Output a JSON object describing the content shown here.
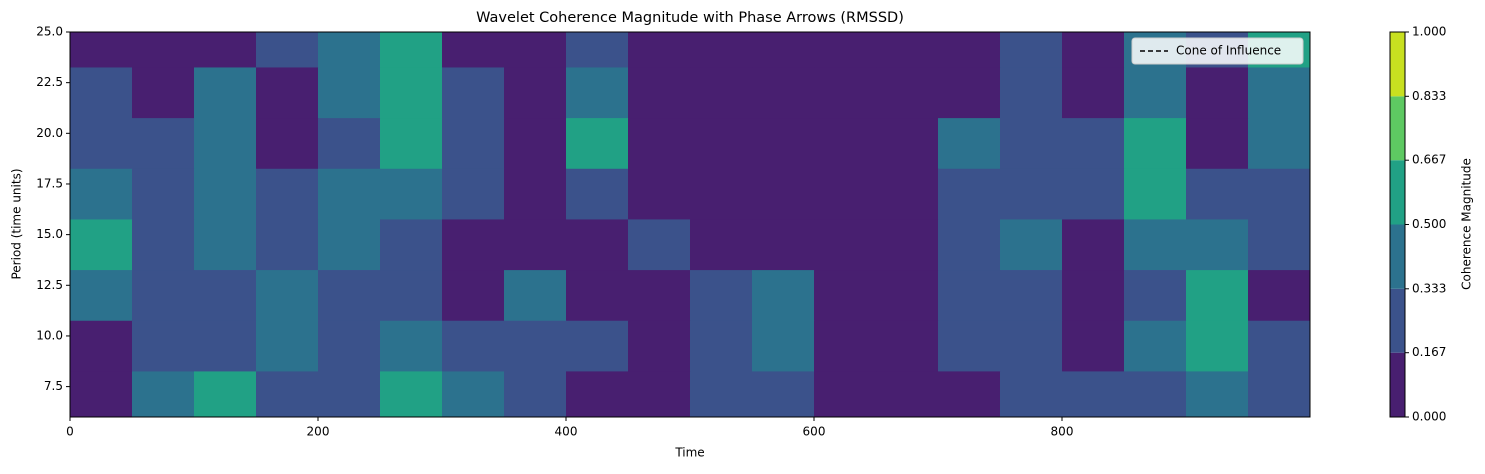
{
  "chart_data": {
    "type": "contourf",
    "title": "Wavelet Coherence Magnitude with Phase Arrows (RMSSD)",
    "xlabel": "Time",
    "ylabel": "Period (time units)",
    "xlim": [
      0,
      1000
    ],
    "ylim": [
      6,
      25
    ],
    "xticks": [
      0,
      200,
      400,
      600,
      800
    ],
    "yticks": [
      7.5,
      {
        "value": 10,
        "label": "10.0"
      },
      12.5,
      {
        "value": 15,
        "label": "15.0"
      },
      17.5,
      {
        "value": 20,
        "label": "20.0"
      },
      22.5,
      {
        "value": 25,
        "label": "25.0"
      }
    ],
    "x": [
      25,
      75,
      125,
      175,
      225,
      275,
      325,
      375,
      425,
      475,
      525,
      575,
      625,
      675,
      725,
      775,
      825,
      875,
      925,
      975
    ],
    "y": [
      24.5,
      22,
      19.5,
      17,
      14.5,
      12,
      9.5,
      7
    ],
    "z": [
      [
        0.1,
        0.1,
        0.1,
        0.25,
        0.4,
        0.55,
        0.1,
        0.1,
        0.25,
        0.1,
        0.1,
        0.1,
        0.1,
        0.1,
        0.1,
        0.25,
        0.1,
        0.4,
        0.25,
        0.55
      ],
      [
        0.25,
        0.1,
        0.4,
        0.1,
        0.4,
        0.55,
        0.25,
        0.1,
        0.4,
        0.1,
        0.1,
        0.1,
        0.1,
        0.1,
        0.1,
        0.25,
        0.1,
        0.4,
        0.1,
        0.4
      ],
      [
        0.25,
        0.25,
        0.4,
        0.1,
        0.25,
        0.55,
        0.25,
        0.1,
        0.55,
        0.1,
        0.1,
        0.1,
        0.1,
        0.1,
        0.4,
        0.25,
        0.25,
        0.55,
        0.1,
        0.4
      ],
      [
        0.4,
        0.25,
        0.4,
        0.25,
        0.4,
        0.4,
        0.25,
        0.1,
        0.25,
        0.1,
        0.1,
        0.1,
        0.1,
        0.1,
        0.25,
        0.25,
        0.25,
        0.55,
        0.25,
        0.25
      ],
      [
        0.55,
        0.25,
        0.4,
        0.25,
        0.4,
        0.25,
        0.1,
        0.1,
        0.1,
        0.25,
        0.1,
        0.1,
        0.1,
        0.1,
        0.25,
        0.4,
        0.1,
        0.4,
        0.4,
        0.25
      ],
      [
        0.4,
        0.25,
        0.25,
        0.4,
        0.25,
        0.25,
        0.1,
        0.4,
        0.1,
        0.1,
        0.25,
        0.4,
        0.1,
        0.1,
        0.25,
        0.25,
        0.1,
        0.25,
        0.55,
        0.1
      ],
      [
        0.1,
        0.25,
        0.25,
        0.4,
        0.25,
        0.4,
        0.25,
        0.25,
        0.25,
        0.1,
        0.25,
        0.4,
        0.1,
        0.1,
        0.25,
        0.25,
        0.1,
        0.4,
        0.55,
        0.25
      ],
      [
        0.1,
        0.4,
        0.55,
        0.25,
        0.25,
        0.55,
        0.4,
        0.25,
        0.1,
        0.1,
        0.25,
        0.25,
        0.1,
        0.1,
        0.1,
        0.25,
        0.25,
        0.25,
        0.4,
        0.25
      ]
    ],
    "levels": [
      {
        "value": 0,
        "label": "0.000"
      },
      0.167,
      0.333,
      {
        "value": 0.5,
        "label": "0.500"
      },
      0.667,
      0.833,
      {
        "value": 1,
        "label": "1.000"
      }
    ],
    "level_colors": [
      "#481f70",
      "#3b528b",
      "#2c728e",
      "#21a185",
      "#5ec962",
      "#c8e020"
    ],
    "colorbar_label": "Coherence Magnitude",
    "legend": {
      "name": "Cone of Influence",
      "color": "#000000",
      "style": "dashed",
      "loc": "upper right"
    }
  }
}
